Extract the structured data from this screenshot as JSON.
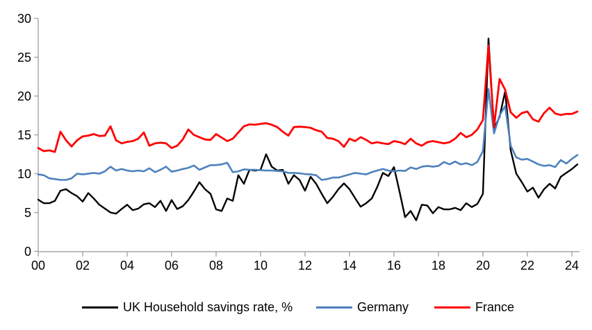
{
  "chart_data": {
    "type": "line",
    "title": "",
    "xlabel": "",
    "ylabel": "",
    "grid": false,
    "legend_position": "bottom",
    "x": {
      "frequency": "quarterly",
      "start": "2000Q1",
      "end": "2024Q2",
      "tick_labels": [
        "00",
        "02",
        "04",
        "06",
        "08",
        "10",
        "12",
        "14",
        "16",
        "18",
        "20",
        "22",
        "24"
      ]
    },
    "y": {
      "min": 0,
      "max": 30,
      "ticks": [
        0,
        5,
        10,
        15,
        20,
        25,
        30
      ]
    },
    "series": [
      {
        "name": "UK Household savings rate, %",
        "color": "#000000",
        "values": [
          6.65,
          6.2,
          6.2,
          6.5,
          7.8,
          8.0,
          7.5,
          7.1,
          6.4,
          7.5,
          6.8,
          6.0,
          5.5,
          5.0,
          4.85,
          5.45,
          6.0,
          5.3,
          5.5,
          6.05,
          6.2,
          5.7,
          6.5,
          5.2,
          6.6,
          5.45,
          5.8,
          6.6,
          7.7,
          8.9,
          8.0,
          7.4,
          5.4,
          5.2,
          6.8,
          6.5,
          9.8,
          8.7,
          10.5,
          10.4,
          10.5,
          12.5,
          10.9,
          10.4,
          10.5,
          8.7,
          9.8,
          9.2,
          7.8,
          9.6,
          8.7,
          7.4,
          6.2,
          7.0,
          8.0,
          8.75,
          8.0,
          6.85,
          5.75,
          6.2,
          6.8,
          8.3,
          10.1,
          9.7,
          10.85,
          7.7,
          4.4,
          5.2,
          4.0,
          6.0,
          5.9,
          4.9,
          5.7,
          5.4,
          5.4,
          5.6,
          5.3,
          6.2,
          5.7,
          6.1,
          7.4,
          27.4,
          15.8,
          17.3,
          20.6,
          13.0,
          10.0,
          8.9,
          7.7,
          8.2,
          6.9,
          8.0,
          8.7,
          8.1,
          9.6,
          10.1,
          10.6,
          11.2
        ]
      },
      {
        "name": "Germany",
        "color": "#4d81bd",
        "values": [
          9.9,
          9.8,
          9.4,
          9.3,
          9.2,
          9.2,
          9.4,
          10.0,
          9.9,
          10.0,
          10.1,
          10.0,
          10.3,
          10.9,
          10.4,
          10.6,
          10.4,
          10.3,
          10.4,
          10.3,
          10.7,
          10.2,
          10.5,
          10.9,
          10.25,
          10.4,
          10.6,
          10.75,
          11.05,
          10.5,
          10.8,
          11.1,
          11.1,
          11.2,
          11.4,
          10.2,
          10.3,
          10.55,
          10.5,
          10.5,
          10.45,
          10.4,
          10.4,
          10.35,
          10.3,
          10.1,
          10.1,
          10.05,
          9.95,
          9.9,
          9.8,
          9.2,
          9.3,
          9.5,
          9.5,
          9.7,
          9.9,
          10.1,
          10.0,
          9.9,
          10.2,
          10.4,
          10.6,
          10.4,
          10.3,
          10.4,
          10.35,
          10.8,
          10.6,
          10.9,
          11.0,
          10.9,
          11.0,
          11.5,
          11.2,
          11.55,
          11.2,
          11.35,
          11.1,
          11.5,
          12.9,
          20.9,
          15.2,
          17.5,
          18.7,
          13.6,
          12.1,
          11.8,
          11.9,
          11.55,
          11.2,
          11.0,
          11.1,
          10.85,
          11.75,
          11.3,
          11.9,
          12.4
        ]
      },
      {
        "name": "France",
        "color": "#ff0000",
        "values": [
          13.3,
          12.9,
          13.0,
          12.8,
          15.4,
          14.3,
          13.5,
          14.3,
          14.8,
          14.9,
          15.1,
          14.85,
          14.9,
          16.1,
          14.3,
          13.9,
          14.1,
          14.2,
          14.5,
          15.3,
          13.6,
          13.9,
          14.0,
          13.9,
          13.3,
          13.6,
          14.4,
          15.7,
          15.0,
          14.7,
          14.4,
          14.35,
          15.1,
          14.65,
          14.2,
          14.5,
          15.3,
          16.1,
          16.35,
          16.3,
          16.4,
          16.5,
          16.3,
          16.0,
          15.4,
          14.9,
          16.0,
          16.05,
          16.0,
          15.9,
          15.6,
          15.4,
          14.6,
          14.5,
          14.2,
          13.45,
          14.5,
          14.2,
          14.7,
          14.35,
          13.9,
          14.05,
          13.9,
          13.8,
          14.2,
          14.05,
          13.8,
          14.5,
          13.9,
          13.6,
          14.05,
          14.2,
          14.05,
          13.9,
          14.05,
          14.5,
          15.25,
          14.7,
          15.0,
          15.7,
          16.9,
          26.5,
          16.0,
          22.2,
          20.8,
          17.9,
          17.2,
          17.8,
          18.0,
          17.0,
          16.7,
          17.8,
          18.5,
          17.75,
          17.55,
          17.7,
          17.7,
          18.0
        ]
      }
    ],
    "axis_color": "#a6a6a6",
    "text_color": "#000000"
  }
}
